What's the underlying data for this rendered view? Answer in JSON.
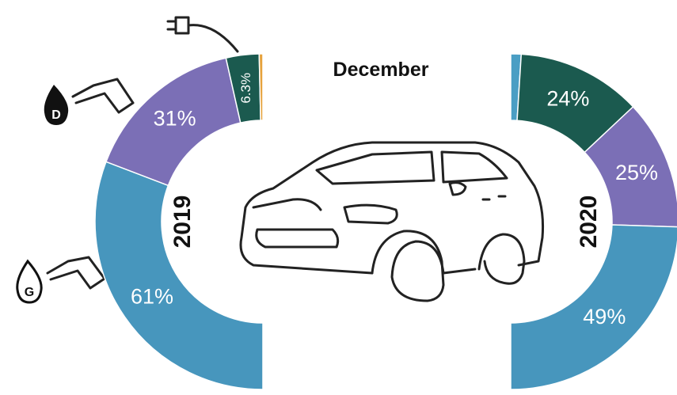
{
  "title": "December",
  "chart_data": [
    {
      "type": "half-donut",
      "side": "left",
      "title": "2019",
      "values": [
        61,
        31,
        6.3,
        0.7
      ],
      "value_labels": [
        "61%",
        "31%",
        "6.3%",
        null
      ],
      "colors": [
        "#4796bd",
        "#7b6fb6",
        "#1b5a4f",
        "#e6a23c"
      ]
    },
    {
      "type": "half-donut",
      "side": "right",
      "title": "2020",
      "values": [
        2,
        24,
        25,
        49
      ],
      "value_labels": [
        null,
        "24%",
        "25%",
        "49%"
      ],
      "colors": [
        "#4a9ec4",
        "#1b5a4f",
        "#7b6fb6",
        "#4796bd"
      ]
    }
  ]
}
